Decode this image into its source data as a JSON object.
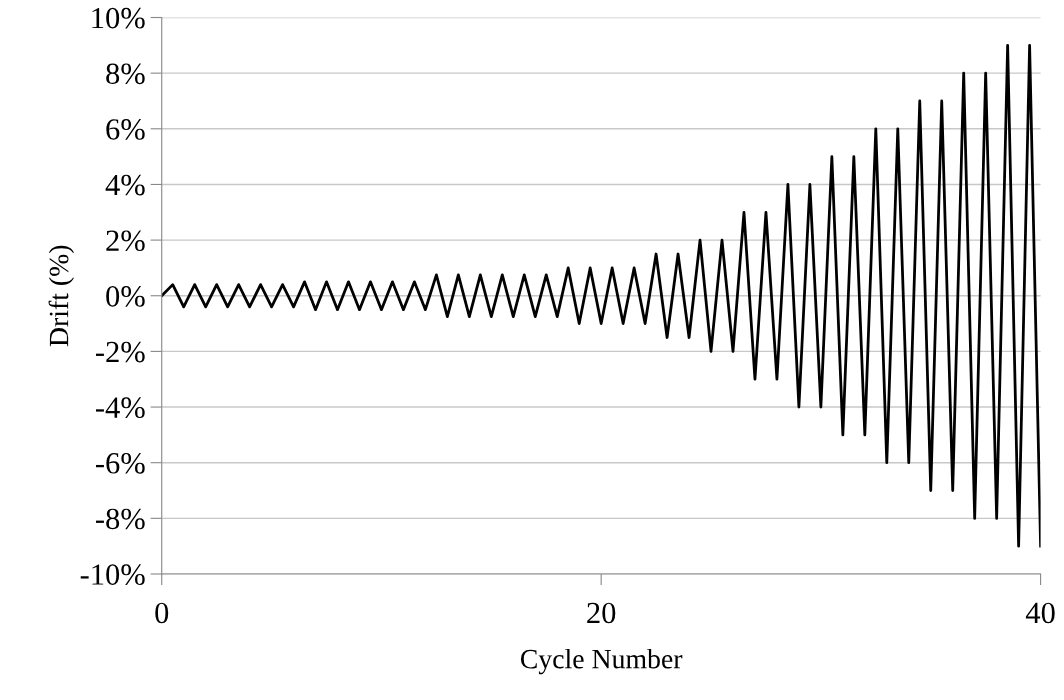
{
  "chart_data": {
    "type": "line",
    "xlabel": "Cycle Number",
    "ylabel": "Drift (%)",
    "x": [
      0,
      0.5,
      1,
      1.5,
      2,
      2.5,
      3,
      3.5,
      4,
      4.5,
      5,
      5.5,
      6,
      6.5,
      7,
      7.5,
      8,
      8.5,
      9,
      9.5,
      10,
      10.5,
      11,
      11.5,
      12,
      12.5,
      13,
      13.5,
      14,
      14.5,
      15,
      15.5,
      16,
      16.5,
      17,
      17.5,
      18,
      18.5,
      19,
      19.5,
      20,
      20.5,
      21,
      21.5,
      22,
      22.5,
      23,
      23.5,
      24,
      24.5,
      25,
      25.5,
      26,
      26.5,
      27,
      27.5,
      28,
      28.5,
      29,
      29.5,
      30,
      30.5,
      31,
      31.5,
      32,
      32.5,
      33,
      33.5,
      34,
      34.5,
      35,
      35.5,
      36,
      36.5,
      37,
      37.5,
      38,
      38.5,
      39,
      39.5,
      40
    ],
    "series": [
      {
        "color": "#000000",
        "values": [
          0,
          0.4,
          -0.4,
          0.4,
          -0.4,
          0.4,
          -0.4,
          0.4,
          -0.4,
          0.4,
          -0.4,
          0.4,
          -0.4,
          0.5,
          -0.5,
          0.5,
          -0.5,
          0.5,
          -0.5,
          0.5,
          -0.5,
          0.5,
          -0.5,
          0.5,
          -0.5,
          0.75,
          -0.75,
          0.75,
          -0.75,
          0.75,
          -0.75,
          0.75,
          -0.75,
          0.75,
          -0.75,
          0.75,
          -0.75,
          1,
          -1,
          1,
          -1,
          1,
          -1,
          1,
          -1,
          1.5,
          -1.5,
          1.5,
          -1.5,
          2,
          -2,
          2,
          -2,
          3,
          -3,
          3,
          -3,
          4,
          -4,
          4,
          -4,
          5,
          -5,
          5,
          -5,
          6,
          -6,
          6,
          -6,
          7,
          -7,
          7,
          -7,
          8,
          -8,
          8,
          -8,
          9,
          -9,
          9,
          -9
        ]
      }
    ],
    "xlim": [
      0,
      40
    ],
    "xticks": [
      0,
      20,
      40
    ],
    "ylim": [
      -10,
      10
    ],
    "yticks": [
      {
        "value": -10,
        "label": "-10%"
      },
      {
        "value": -8,
        "label": "-8%"
      },
      {
        "value": -6,
        "label": "-6%"
      },
      {
        "value": -4,
        "label": "-4%"
      },
      {
        "value": -2,
        "label": "-2%"
      },
      {
        "value": 0,
        "label": "0%"
      },
      {
        "value": 2,
        "label": "2%"
      },
      {
        "value": 4,
        "label": "4%"
      },
      {
        "value": 6,
        "label": "6%"
      },
      {
        "value": 8,
        "label": "8%"
      },
      {
        "value": 10,
        "label": "10%"
      }
    ],
    "grid": "y",
    "marker": "none",
    "line_style": "solid"
  }
}
